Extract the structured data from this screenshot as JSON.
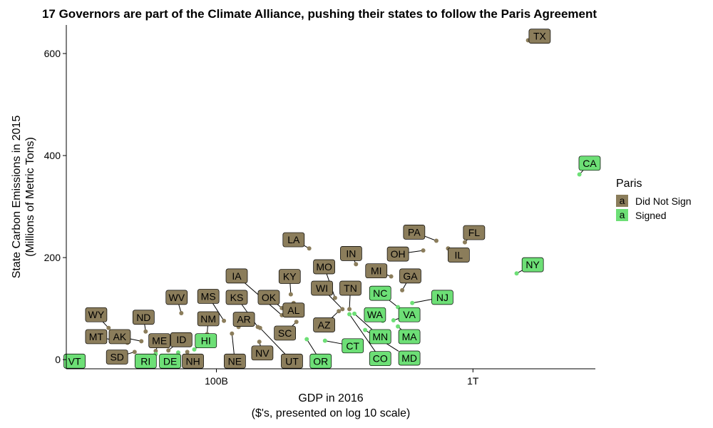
{
  "chart_data": {
    "type": "scatter",
    "title": "17 Governors are part of the Climate Alliance, pushing their states to follow the Paris Agreement",
    "xlabel": "GDP in 2016",
    "xlabel_sub": "($'s, presented on log 10 scale)",
    "ylabel": "State Carbon Emissions in 2015",
    "ylabel_sub": "(Millions of Metric Tons)",
    "x_scale": "log10",
    "x_unit": "dollars",
    "xlim": [
      26000000000,
      3000000000000
    ],
    "ylim": [
      -18,
      656
    ],
    "x_ticks": [
      {
        "value": 100000000000,
        "label": "100B"
      },
      {
        "value": 1000000000000,
        "label": "1T"
      }
    ],
    "y_ticks": [
      0,
      200,
      400,
      600
    ],
    "grid": false,
    "legend": {
      "title": "Paris",
      "position": "right",
      "key_glyph": "a",
      "entries": [
        {
          "name": "Did Not Sign",
          "color": "#8b7d5b"
        },
        {
          "name": "Signed",
          "color": "#6ddf76"
        }
      ]
    },
    "series": [
      {
        "name": "Did Not Sign",
        "color": "#8b7d5b",
        "points": [
          {
            "label": "TX",
            "x": 1640000000000,
            "y": 626,
            "lx": 1820000000000,
            "ly": 634
          },
          {
            "label": "PA",
            "x": 720000000000,
            "y": 233,
            "lx": 590000000000,
            "ly": 250
          },
          {
            "label": "FL",
            "x": 930000000000,
            "y": 230,
            "lx": 1010000000000,
            "ly": 249
          },
          {
            "label": "IL",
            "x": 800000000000,
            "y": 218,
            "lx": 880000000000,
            "ly": 205
          },
          {
            "label": "OH",
            "x": 640000000000,
            "y": 214,
            "lx": 510000000000,
            "ly": 207
          },
          {
            "label": "LA",
            "x": 230000000000,
            "y": 218,
            "lx": 200000000000,
            "ly": 235
          },
          {
            "label": "IN",
            "x": 350000000000,
            "y": 187,
            "lx": 335000000000,
            "ly": 208
          },
          {
            "label": "MI",
            "x": 480000000000,
            "y": 163,
            "lx": 420000000000,
            "ly": 174
          },
          {
            "label": "GA",
            "x": 530000000000,
            "y": 136,
            "lx": 570000000000,
            "ly": 164
          },
          {
            "label": "MO",
            "x": 290000000000,
            "y": 121,
            "lx": 263000000000,
            "ly": 182
          },
          {
            "label": "KY",
            "x": 195000000000,
            "y": 128,
            "lx": 193000000000,
            "ly": 163
          },
          {
            "label": "IA",
            "x": 180000000000,
            "y": 87,
            "lx": 120000000000,
            "ly": 164
          },
          {
            "label": "WI",
            "x": 310000000000,
            "y": 99,
            "lx": 258000000000,
            "ly": 140
          },
          {
            "label": "TN",
            "x": 330000000000,
            "y": 99,
            "lx": 333000000000,
            "ly": 140
          },
          {
            "label": "WV",
            "x": 73000000000,
            "y": 91,
            "lx": 70000000000,
            "ly": 122
          },
          {
            "label": "MS",
            "x": 107000000000,
            "y": 76,
            "lx": 93000000000,
            "ly": 124
          },
          {
            "label": "KS",
            "x": 145000000000,
            "y": 64,
            "lx": 120000000000,
            "ly": 122
          },
          {
            "label": "OK",
            "x": 180000000000,
            "y": 101,
            "lx": 160000000000,
            "ly": 122
          },
          {
            "label": "AL",
            "x": 200000000000,
            "y": 111,
            "lx": 200000000000,
            "ly": 97
          },
          {
            "label": "ND",
            "x": 53000000000,
            "y": 55,
            "lx": 52000000000,
            "ly": 83
          },
          {
            "label": "WY",
            "x": 38000000000,
            "y": 62,
            "lx": 34000000000,
            "ly": 88
          },
          {
            "label": "NM",
            "x": 92000000000,
            "y": 50,
            "lx": 93000000000,
            "ly": 80
          },
          {
            "label": "AR",
            "x": 122000000000,
            "y": 64,
            "lx": 128000000000,
            "ly": 79
          },
          {
            "label": "AZ",
            "x": 300000000000,
            "y": 95,
            "lx": 263000000000,
            "ly": 68
          },
          {
            "label": "SC",
            "x": 205000000000,
            "y": 74,
            "lx": 185000000000,
            "ly": 52
          },
          {
            "label": "MT",
            "x": 45000000000,
            "y": 33,
            "lx": 34000000000,
            "ly": 45
          },
          {
            "label": "AK",
            "x": 51000000000,
            "y": 36,
            "lx": 42000000000,
            "ly": 45
          },
          {
            "label": "ME",
            "x": 58000000000,
            "y": 17,
            "lx": 60000000000,
            "ly": 37
          },
          {
            "label": "ID",
            "x": 65000000000,
            "y": 18,
            "lx": 73000000000,
            "ly": 39
          },
          {
            "label": "NV",
            "x": 147000000000,
            "y": 35,
            "lx": 151000000000,
            "ly": 13
          },
          {
            "label": "SD",
            "x": 48000000000,
            "y": 15,
            "lx": 41000000000,
            "ly": 5
          },
          {
            "label": "NH",
            "x": 77000000000,
            "y": 15,
            "lx": 81000000000,
            "ly": -3
          },
          {
            "label": "NE",
            "x": 115000000000,
            "y": 51,
            "lx": 118000000000,
            "ly": -3
          },
          {
            "label": "UT",
            "x": 148000000000,
            "y": 62,
            "lx": 197000000000,
            "ly": -3
          }
        ]
      },
      {
        "name": "Signed",
        "color": "#6ddf76",
        "points": [
          {
            "label": "CA",
            "x": 2600000000000,
            "y": 363,
            "lx": 2850000000000,
            "ly": 385
          },
          {
            "label": "NY",
            "x": 1480000000000,
            "y": 169,
            "lx": 1710000000000,
            "ly": 186
          },
          {
            "label": "NC",
            "x": 510000000000,
            "y": 103,
            "lx": 435000000000,
            "ly": 130
          },
          {
            "label": "NJ",
            "x": 580000000000,
            "y": 111,
            "lx": 760000000000,
            "ly": 122
          },
          {
            "label": "VA",
            "x": 490000000000,
            "y": 77,
            "lx": 565000000000,
            "ly": 88
          },
          {
            "label": "WA",
            "x": 445000000000,
            "y": 76,
            "lx": 415000000000,
            "ly": 88
          },
          {
            "label": "MN",
            "x": 345000000000,
            "y": 90,
            "lx": 435000000000,
            "ly": 45
          },
          {
            "label": "MA",
            "x": 510000000000,
            "y": 65,
            "lx": 565000000000,
            "ly": 45
          },
          {
            "label": "CT",
            "x": 265000000000,
            "y": 37,
            "lx": 340000000000,
            "ly": 27
          },
          {
            "label": "CO",
            "x": 330000000000,
            "y": 89,
            "lx": 435000000000,
            "ly": 2
          },
          {
            "label": "MD",
            "x": 380000000000,
            "y": 58,
            "lx": 565000000000,
            "ly": 3
          },
          {
            "label": "OR",
            "x": 225000000000,
            "y": 40,
            "lx": 255000000000,
            "ly": -3
          },
          {
            "label": "HI",
            "x": 82000000000,
            "y": 20,
            "lx": 91000000000,
            "ly": 37
          },
          {
            "label": "DE",
            "x": 71000000000,
            "y": 14,
            "lx": 66000000000,
            "ly": -3
          },
          {
            "label": "RI",
            "x": 58000000000,
            "y": 11,
            "lx": 53000000000,
            "ly": -3
          },
          {
            "label": "VT",
            "x": 30000000000,
            "y": 7,
            "lx": 28000000000,
            "ly": -3
          }
        ]
      }
    ]
  }
}
